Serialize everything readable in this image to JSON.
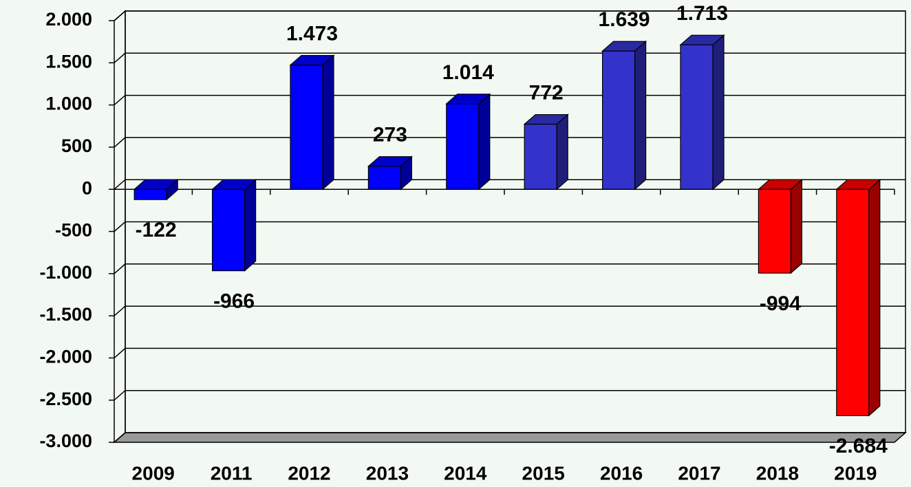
{
  "chart_data": {
    "type": "bar",
    "categories": [
      "2009",
      "2011",
      "2012",
      "2013",
      "2014",
      "2015",
      "2016",
      "2017",
      "2018",
      "2019"
    ],
    "values": [
      -122,
      -966,
      1473,
      273,
      1014,
      772,
      1639,
      1713,
      -994,
      -2684
    ],
    "value_labels": [
      "-122",
      "-966",
      "1.473",
      "273",
      "1.014",
      "772",
      "1.639",
      "1.713",
      "-994",
      "-2.684"
    ],
    "colors": [
      "#0000ff",
      "#0000ff",
      "#0000ff",
      "#0000ff",
      "#0000ff",
      "#3333cc",
      "#3333cc",
      "#3333cc",
      "#ff0000",
      "#ff0000"
    ],
    "ylim": [
      -3000,
      2000
    ],
    "yticks": [
      {
        "value": 2000,
        "label": "2.000"
      },
      {
        "value": 1500,
        "label": "1.500"
      },
      {
        "value": 1000,
        "label": "1.000"
      },
      500,
      0,
      -500,
      {
        "value": -1000,
        "label": "-1.000"
      },
      {
        "value": -1500,
        "label": "-1.500"
      },
      {
        "value": -2000,
        "label": "-2.000"
      },
      {
        "value": -2500,
        "label": "-2.500"
      },
      {
        "value": -3000,
        "label": "-3.000"
      }
    ],
    "grid": true
  }
}
